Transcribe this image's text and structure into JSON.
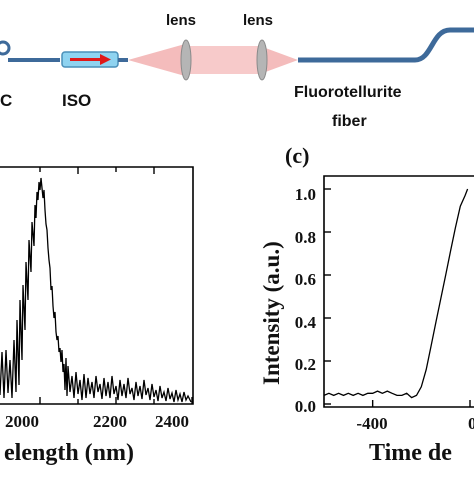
{
  "schematic": {
    "labels": {
      "left_cut": "C",
      "isolator": "ISO",
      "lens_1": "lens",
      "lens_2": "lens",
      "fiber_line1": "Fluorotellurite",
      "fiber_line2": "fiber"
    },
    "colors": {
      "fiber": "#3e6a9a",
      "beam": "#f2a6a6",
      "lens": "#a7a7a7",
      "isolator_body": "#8fd3f0",
      "isolator_arrow": "#e01818"
    }
  },
  "chart_data": [
    {
      "panel": "left",
      "type": "line",
      "xlabel": "elength (nm)",
      "x_ticks": [
        "2000",
        "2200",
        "2400"
      ],
      "xlim": [
        1820,
        2400
      ],
      "ylim": [
        0,
        1.0
      ],
      "note_peak_nm": 1960
    },
    {
      "panel": "right",
      "panel_label": "(c)",
      "type": "line",
      "ylabel": "Intensity (a.u.)",
      "xlabel": "Time de",
      "y_ticks": [
        "0.0",
        "0.2",
        "0.4",
        "0.6",
        "0.8",
        "1.0"
      ],
      "x_ticks": [
        "-400",
        "0"
      ],
      "xlim": [
        -600,
        0
      ],
      "ylim": [
        0,
        1.1
      ],
      "series": [
        {
          "x": [
            -600,
            -580,
            -560,
            -540,
            -520,
            -500,
            -480,
            -460,
            -440,
            -420,
            -400,
            -380,
            -360,
            -340,
            -320,
            -300,
            -280,
            -260,
            -240,
            -220,
            -200,
            -180,
            -160,
            -140,
            -120,
            -100,
            -80,
            -60,
            -40,
            -20,
            -10
          ],
          "y": [
            0.04,
            0.05,
            0.04,
            0.05,
            0.04,
            0.05,
            0.04,
            0.05,
            0.04,
            0.05,
            0.05,
            0.06,
            0.05,
            0.06,
            0.05,
            0.04,
            0.04,
            0.05,
            0.03,
            0.04,
            0.08,
            0.16,
            0.27,
            0.38,
            0.49,
            0.6,
            0.71,
            0.82,
            0.92,
            0.97,
            1.0
          ]
        }
      ]
    }
  ]
}
